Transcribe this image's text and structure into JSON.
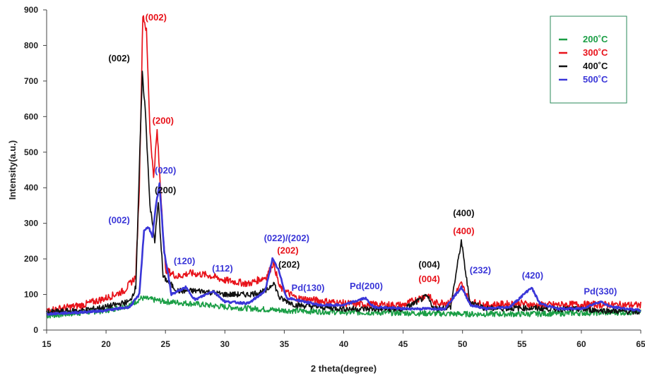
{
  "chart_data": {
    "type": "line",
    "title": "",
    "xlabel": "2 theta(degree)",
    "ylabel": "Intensity(a.u.)",
    "xlim": [
      15,
      65
    ],
    "ylim": [
      0,
      900
    ],
    "x_ticks": [
      "15",
      "20",
      "25",
      "30",
      "35",
      "40",
      "45",
      "50",
      "55",
      "60",
      "65"
    ],
    "y_ticks": [
      "0",
      "100",
      "200",
      "300",
      "400",
      "500",
      "600",
      "700",
      "800",
      "900"
    ],
    "grid": false,
    "legend_position": "top-right",
    "series": [
      {
        "name": "200˚C",
        "color": "#1a9e45",
        "noise": 8,
        "points": [
          [
            15,
            40
          ],
          [
            20,
            55
          ],
          [
            22,
            70
          ],
          [
            23,
            90
          ],
          [
            24,
            85
          ],
          [
            25,
            80
          ],
          [
            27,
            75
          ],
          [
            30,
            65
          ],
          [
            35,
            55
          ],
          [
            40,
            50
          ],
          [
            45,
            48
          ],
          [
            50,
            45
          ],
          [
            55,
            45
          ],
          [
            60,
            48
          ],
          [
            65,
            50
          ]
        ]
      },
      {
        "name": "300˚C",
        "color": "#e8121a",
        "noise": 10,
        "points": [
          [
            15,
            55
          ],
          [
            18,
            70
          ],
          [
            20,
            90
          ],
          [
            21.5,
            110
          ],
          [
            22.5,
            150
          ],
          [
            22.8,
            400
          ],
          [
            23.1,
            890
          ],
          [
            23.4,
            840
          ],
          [
            23.7,
            560
          ],
          [
            24.0,
            430
          ],
          [
            24.3,
            560
          ],
          [
            24.6,
            390
          ],
          [
            25,
            170
          ],
          [
            26,
            150
          ],
          [
            27,
            160
          ],
          [
            28.5,
            155
          ],
          [
            30,
            140
          ],
          [
            32,
            130
          ],
          [
            33.5,
            150
          ],
          [
            34.1,
            190
          ],
          [
            34.6,
            120
          ],
          [
            36,
            90
          ],
          [
            40,
            75
          ],
          [
            42,
            72
          ],
          [
            45,
            70
          ],
          [
            47.1,
            100
          ],
          [
            47.6,
            75
          ],
          [
            49,
            80
          ],
          [
            49.9,
            130
          ],
          [
            50.6,
            80
          ],
          [
            52,
            70
          ],
          [
            55,
            75
          ],
          [
            56,
            70
          ],
          [
            60,
            72
          ],
          [
            65,
            70
          ]
        ]
      },
      {
        "name": "400˚C",
        "color": "#111111",
        "noise": 8,
        "points": [
          [
            15,
            50
          ],
          [
            18,
            55
          ],
          [
            20,
            65
          ],
          [
            22,
            80
          ],
          [
            22.5,
            120
          ],
          [
            22.8,
            450
          ],
          [
            23.05,
            720
          ],
          [
            23.3,
            620
          ],
          [
            23.7,
            350
          ],
          [
            24.1,
            250
          ],
          [
            24.4,
            360
          ],
          [
            24.8,
            150
          ],
          [
            26,
            110
          ],
          [
            28,
            110
          ],
          [
            30,
            100
          ],
          [
            32,
            100
          ],
          [
            33.5,
            110
          ],
          [
            34.1,
            135
          ],
          [
            34.6,
            90
          ],
          [
            36,
            70
          ],
          [
            40,
            60
          ],
          [
            45,
            58
          ],
          [
            47,
            95
          ],
          [
            47.6,
            60
          ],
          [
            49,
            65
          ],
          [
            49.9,
            250
          ],
          [
            50.6,
            80
          ],
          [
            52,
            60
          ],
          [
            55,
            62
          ],
          [
            60,
            58
          ],
          [
            65,
            50
          ]
        ]
      },
      {
        "name": "500˚C",
        "color": "#3a36d8",
        "noise": 3,
        "points": [
          [
            15,
            45
          ],
          [
            18,
            50
          ],
          [
            20,
            55
          ],
          [
            22,
            65
          ],
          [
            22.8,
            100
          ],
          [
            23.2,
            280
          ],
          [
            23.6,
            290
          ],
          [
            23.9,
            260
          ],
          [
            24.2,
            350
          ],
          [
            24.5,
            410
          ],
          [
            24.9,
            220
          ],
          [
            25.5,
            100
          ],
          [
            26.7,
            120
          ],
          [
            27.5,
            85
          ],
          [
            29,
            110
          ],
          [
            30,
            80
          ],
          [
            32,
            75
          ],
          [
            33.4,
            110
          ],
          [
            34,
            200
          ],
          [
            34.5,
            170
          ],
          [
            35.2,
            90
          ],
          [
            36,
            85
          ],
          [
            38,
            70
          ],
          [
            40,
            70
          ],
          [
            41.8,
            90
          ],
          [
            42.5,
            65
          ],
          [
            45,
            60
          ],
          [
            47,
            60
          ],
          [
            48.5,
            60
          ],
          [
            49.9,
            120
          ],
          [
            50.7,
            70
          ],
          [
            52,
            60
          ],
          [
            54,
            65
          ],
          [
            55.8,
            120
          ],
          [
            56.5,
            75
          ],
          [
            58,
            60
          ],
          [
            60,
            60
          ],
          [
            61.6,
            80
          ],
          [
            62.5,
            65
          ],
          [
            65,
            55
          ]
        ]
      }
    ],
    "annotations": [
      {
        "text": "(002)",
        "series": "300˚C",
        "x": 24.2,
        "y": 870
      },
      {
        "text": "(002)",
        "series": "400˚C",
        "x": 21.1,
        "y": 755
      },
      {
        "text": "(200)",
        "series": "300˚C",
        "x": 24.8,
        "y": 580
      },
      {
        "text": "(020)",
        "series": "500˚C",
        "x": 25.0,
        "y": 440
      },
      {
        "text": "(200)",
        "series": "400˚C",
        "x": 25.0,
        "y": 385
      },
      {
        "text": "(002)",
        "series": "500˚C",
        "x": 21.1,
        "y": 300
      },
      {
        "text": "(120)",
        "series": "500˚C",
        "x": 26.6,
        "y": 185
      },
      {
        "text": "(112)",
        "series": "500˚C",
        "x": 29.8,
        "y": 165
      },
      {
        "text": "(022)/(202)",
        "series": "500˚C",
        "x": 35.2,
        "y": 250
      },
      {
        "text": "(202)",
        "series": "300˚C",
        "x": 35.3,
        "y": 215
      },
      {
        "text": "(202)",
        "series": "400˚C",
        "x": 35.4,
        "y": 175
      },
      {
        "text": "Pd(130)",
        "series": "500˚C",
        "x": 37.0,
        "y": 110
      },
      {
        "text": "Pd(200)",
        "series": "500˚C",
        "x": 41.9,
        "y": 115
      },
      {
        "text": "(004)",
        "series": "400˚C",
        "x": 47.2,
        "y": 175
      },
      {
        "text": "(004)",
        "series": "300˚C",
        "x": 47.2,
        "y": 135
      },
      {
        "text": "(400)",
        "series": "400˚C",
        "x": 50.1,
        "y": 320
      },
      {
        "text": "(400)",
        "series": "300˚C",
        "x": 50.1,
        "y": 270
      },
      {
        "text": "(232)",
        "series": "500˚C",
        "x": 51.5,
        "y": 160
      },
      {
        "text": "(420)",
        "series": "500˚C",
        "x": 55.9,
        "y": 145
      },
      {
        "text": "Pd(330)",
        "series": "500˚C",
        "x": 61.6,
        "y": 100
      }
    ]
  }
}
